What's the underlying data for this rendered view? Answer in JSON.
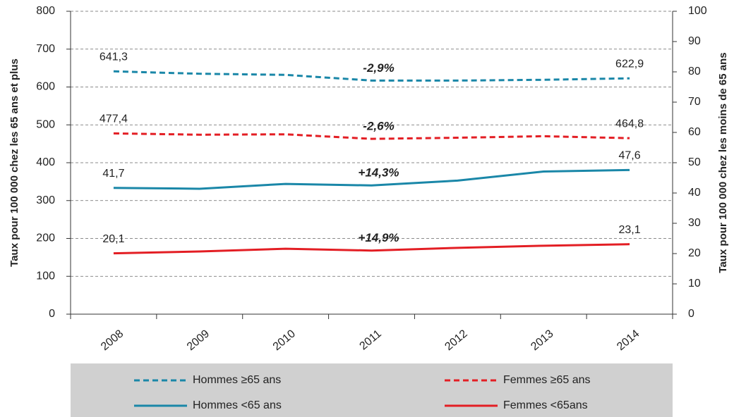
{
  "chart_data": {
    "type": "line",
    "y_label": "Taux pour 100 000 chez les 65 ans et plus",
    "y2_label": "Taux pour 100 000 chez les moins de 65 ans",
    "categories": [
      "2008",
      "2009",
      "2010",
      "2011",
      "2012",
      "2013",
      "2014"
    ],
    "ylim": [
      0,
      800
    ],
    "yticks": [
      0,
      100,
      200,
      300,
      400,
      500,
      600,
      700,
      800
    ],
    "y2lim": [
      0,
      100
    ],
    "y2ticks": [
      0,
      10,
      20,
      30,
      40,
      50,
      60,
      70,
      80,
      90,
      100
    ],
    "grid": true,
    "legend": "bottom",
    "series": [
      {
        "name": "Hommes ≥65 ans",
        "color": "#1a87a8",
        "line_style": "dashed",
        "axis": "y",
        "values": [
          641.3,
          635,
          632,
          617,
          617,
          619,
          622.9
        ],
        "value_labels": [
          "641,3",
          null,
          null,
          null,
          null,
          null,
          "622,9"
        ],
        "change_label": "-2,9%"
      },
      {
        "name": "Femmes ≥65 ans",
        "color": "#e31e24",
        "line_style": "dashed",
        "axis": "y",
        "values": [
          477.4,
          474,
          475,
          463,
          466,
          470,
          464.8
        ],
        "value_labels": [
          "477,4",
          null,
          null,
          null,
          null,
          null,
          "464,8"
        ],
        "change_label": "-2,6%"
      },
      {
        "name": "Hommes <65 ans",
        "color": "#1a87a8",
        "line_style": "solid",
        "axis": "y2",
        "values": [
          41.7,
          41.4,
          43.0,
          42.5,
          44.1,
          47.1,
          47.6
        ],
        "value_labels": [
          "41,7",
          null,
          null,
          null,
          null,
          null,
          "47,6"
        ],
        "change_label": "+14,3%"
      },
      {
        "name": "Femmes <65ans",
        "color": "#e31e24",
        "line_style": "solid",
        "axis": "y2",
        "values": [
          20.1,
          20.7,
          21.6,
          21.0,
          21.9,
          22.6,
          23.1
        ],
        "value_labels": [
          "20,1",
          null,
          null,
          null,
          null,
          null,
          "23,1"
        ],
        "change_label": "+14,9%"
      }
    ]
  }
}
